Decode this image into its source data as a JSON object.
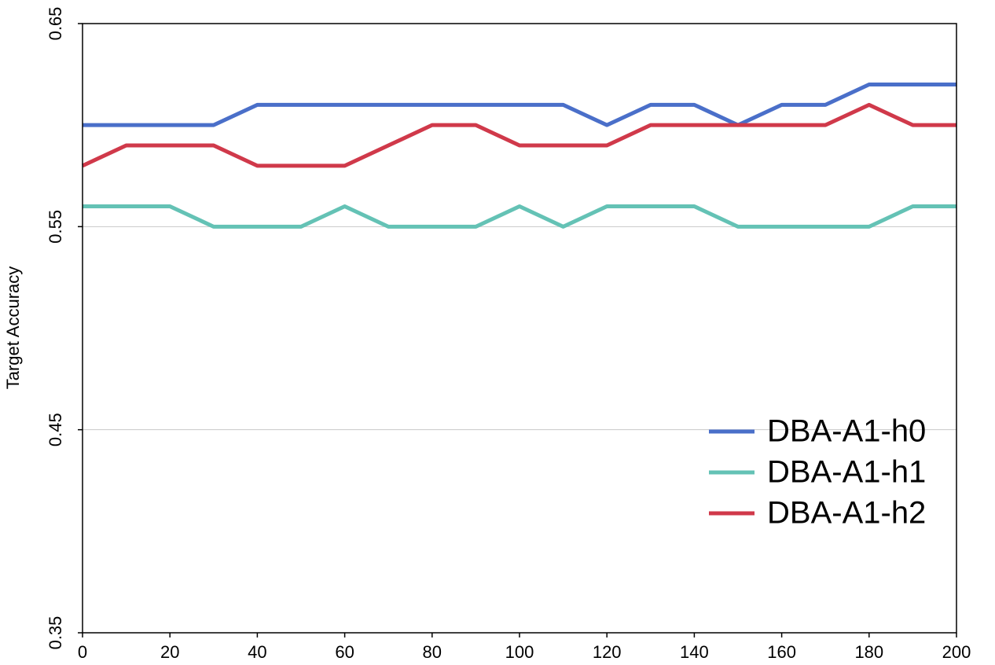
{
  "chart_data": {
    "type": "line",
    "y_label": "Target  Accuracy",
    "x": [
      0,
      10,
      20,
      30,
      40,
      50,
      60,
      70,
      80,
      90,
      100,
      110,
      120,
      130,
      140,
      150,
      160,
      170,
      180,
      190,
      200
    ],
    "series": [
      {
        "name": "DBA-A1-h0",
        "color": "#4a6fc9",
        "values": [
          0.6,
          0.6,
          0.6,
          0.6,
          0.61,
          0.61,
          0.61,
          0.61,
          0.61,
          0.61,
          0.61,
          0.61,
          0.6,
          0.61,
          0.61,
          0.6,
          0.61,
          0.61,
          0.62,
          0.62,
          0.62
        ]
      },
      {
        "name": "DBA-A1-h1",
        "color": "#64c2b5",
        "values": [
          0.56,
          0.56,
          0.56,
          0.55,
          0.55,
          0.55,
          0.56,
          0.55,
          0.55,
          0.55,
          0.56,
          0.55,
          0.56,
          0.56,
          0.56,
          0.55,
          0.55,
          0.55,
          0.55,
          0.56,
          0.56
        ]
      },
      {
        "name": "DBA-A1-h2",
        "color": "#d0394a",
        "values": [
          0.58,
          0.59,
          0.59,
          0.59,
          0.58,
          0.58,
          0.58,
          0.59,
          0.6,
          0.6,
          0.59,
          0.59,
          0.59,
          0.6,
          0.6,
          0.6,
          0.6,
          0.6,
          0.61,
          0.6,
          0.6
        ]
      }
    ],
    "xlim": [
      0,
      200
    ],
    "xticks": [
      0,
      20,
      40,
      60,
      80,
      100,
      120,
      140,
      160,
      180,
      200
    ],
    "ylim": [
      0.35,
      0.65
    ],
    "yticks": [
      0.35,
      0.45,
      0.55,
      0.65
    ],
    "grid": true,
    "legend": "lower right"
  }
}
